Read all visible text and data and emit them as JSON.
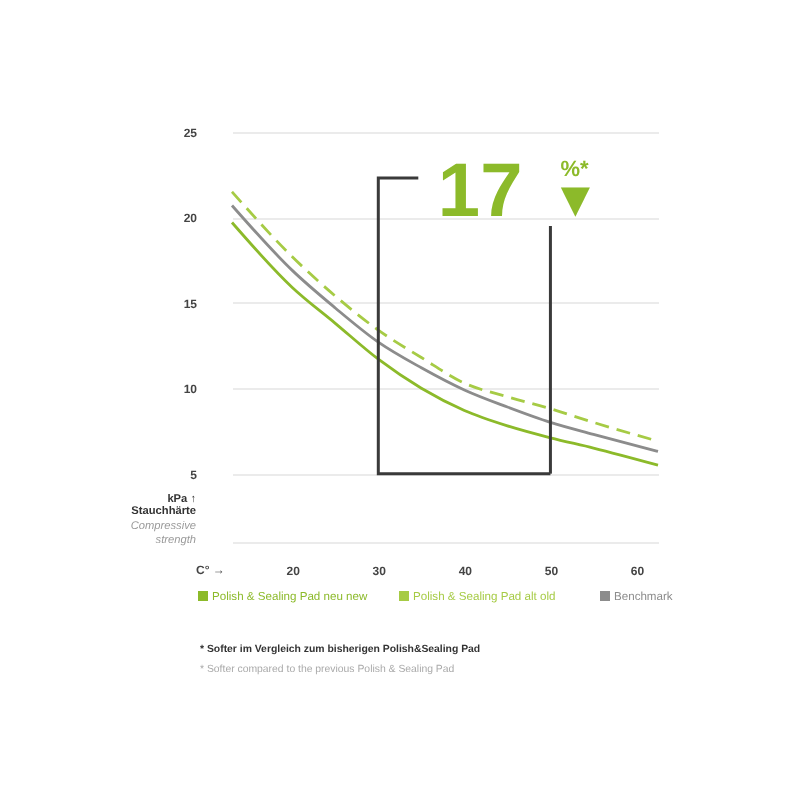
{
  "chart_data": {
    "type": "line",
    "xlabel": "C° →",
    "ylabel": "kPa ↑\nStauchhärte",
    "x": [
      13,
      20,
      25,
      30,
      35,
      40,
      45,
      50,
      55,
      62.5
    ],
    "series": [
      {
        "name": "Polish & Sealing Pad neu new",
        "color": "#8cba2a",
        "line_style": "solid",
        "values": [
          19.7,
          15.9,
          13.8,
          11.7,
          10.0,
          8.7,
          7.8,
          7.1,
          6.5,
          5.5
        ]
      },
      {
        "name": "Polish & Sealing Pad alt old",
        "color": "#a6cb45",
        "line_style": "dashed",
        "values": [
          21.5,
          17.7,
          15.4,
          13.4,
          11.8,
          10.3,
          9.5,
          8.8,
          8.0,
          6.9
        ]
      },
      {
        "name": "Benchmark",
        "color": "#8c8c8c",
        "line_style": "solid",
        "values": [
          20.7,
          16.9,
          14.7,
          12.7,
          11.2,
          9.9,
          8.9,
          8.0,
          7.3,
          6.3
        ]
      }
    ],
    "xlim": [
      13,
      62.5
    ],
    "ylim": [
      1,
      25
    ],
    "xticks": [
      20,
      30,
      40,
      50,
      60
    ],
    "yticks": [
      {
        "value": 1,
        "label": null
      },
      5,
      10,
      15,
      20,
      25
    ],
    "grid": "y",
    "legend": "bottom",
    "ref_lines": [
      {
        "axis": "x",
        "value": 30,
        "color": "#3a3a3a"
      },
      {
        "axis": "x",
        "value": 50,
        "color": "#3a3a3a"
      }
    ],
    "annotations": [
      "17",
      "%*",
      "▼",
      "Compressive\nstrength",
      "* Softer im Vergleich zum bisherigen Polish&Sealing Pad",
      "* Softer compared to the previous Polish & Sealing Pad"
    ]
  }
}
